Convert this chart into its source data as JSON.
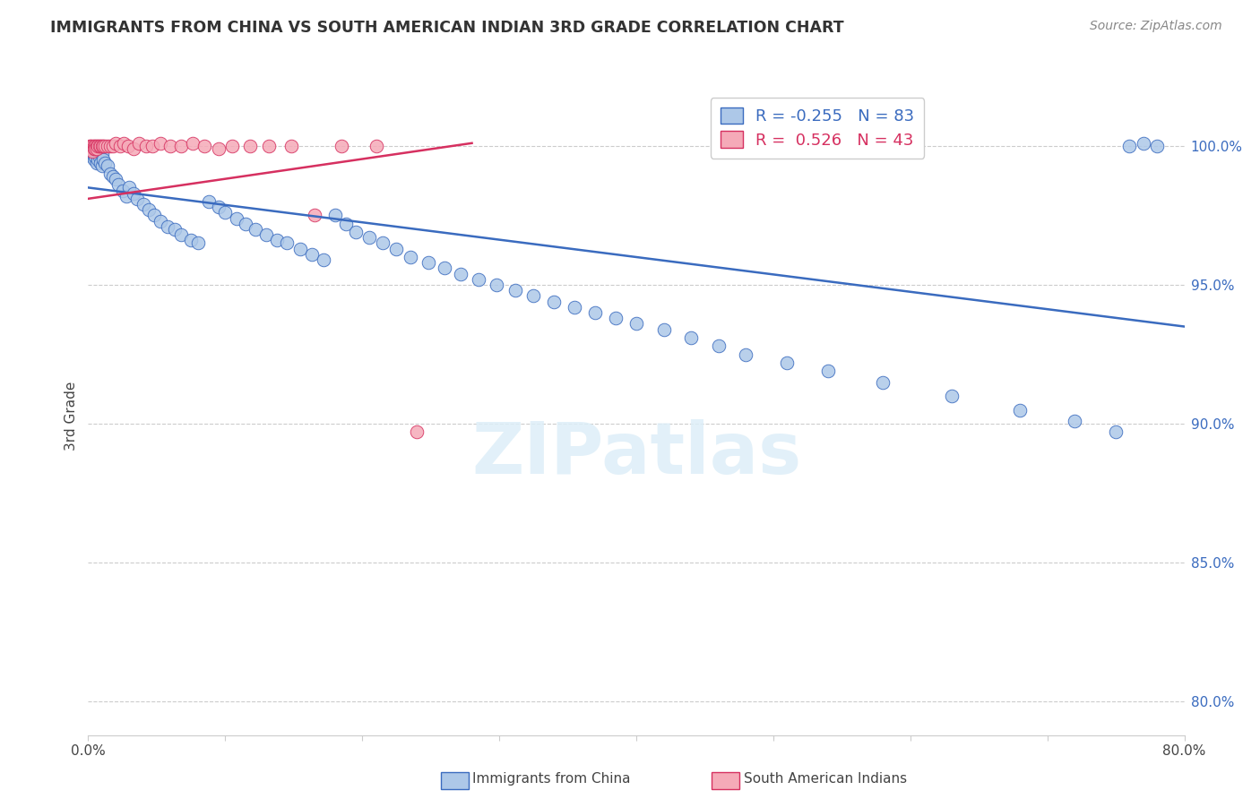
{
  "title": "IMMIGRANTS FROM CHINA VS SOUTH AMERICAN INDIAN 3RD GRADE CORRELATION CHART",
  "source": "Source: ZipAtlas.com",
  "ylabel": "3rd Grade",
  "yticks": [
    0.8,
    0.85,
    0.9,
    0.95,
    1.0
  ],
  "ytick_labels": [
    "80.0%",
    "85.0%",
    "90.0%",
    "95.0%",
    "100.0%"
  ],
  "xmin": 0.0,
  "xmax": 0.8,
  "ymin": 0.788,
  "ymax": 1.018,
  "blue_R": -0.255,
  "blue_N": 83,
  "pink_R": 0.526,
  "pink_N": 43,
  "blue_color": "#adc8e8",
  "blue_line_color": "#3a6bbf",
  "pink_color": "#f5aab8",
  "pink_line_color": "#d63060",
  "blue_line_x0": 0.0,
  "blue_line_y0": 0.985,
  "blue_line_x1": 0.8,
  "blue_line_y1": 0.935,
  "pink_line_x0": 0.0,
  "pink_line_y0": 0.981,
  "pink_line_x1": 0.28,
  "pink_line_y1": 1.001,
  "blue_scatter_x": [
    0.001,
    0.002,
    0.002,
    0.003,
    0.003,
    0.004,
    0.004,
    0.005,
    0.005,
    0.006,
    0.006,
    0.007,
    0.007,
    0.008,
    0.009,
    0.01,
    0.01,
    0.011,
    0.012,
    0.014,
    0.016,
    0.018,
    0.02,
    0.022,
    0.025,
    0.028,
    0.03,
    0.033,
    0.036,
    0.04,
    0.044,
    0.048,
    0.053,
    0.058,
    0.063,
    0.068,
    0.075,
    0.08,
    0.088,
    0.095,
    0.1,
    0.108,
    0.115,
    0.122,
    0.13,
    0.138,
    0.145,
    0.155,
    0.163,
    0.172,
    0.18,
    0.188,
    0.195,
    0.205,
    0.215,
    0.225,
    0.235,
    0.248,
    0.26,
    0.272,
    0.285,
    0.298,
    0.312,
    0.325,
    0.34,
    0.355,
    0.37,
    0.385,
    0.4,
    0.42,
    0.44,
    0.46,
    0.48,
    0.51,
    0.54,
    0.58,
    0.63,
    0.68,
    0.72,
    0.75,
    0.76,
    0.77,
    0.78
  ],
  "blue_scatter_y": [
    0.998,
    0.997,
    0.999,
    0.996,
    0.998,
    0.995,
    0.997,
    0.996,
    0.998,
    0.994,
    0.997,
    0.995,
    0.998,
    0.996,
    0.994,
    0.997,
    0.993,
    0.995,
    0.994,
    0.993,
    0.99,
    0.989,
    0.988,
    0.986,
    0.984,
    0.982,
    0.985,
    0.983,
    0.981,
    0.979,
    0.977,
    0.975,
    0.973,
    0.971,
    0.97,
    0.968,
    0.966,
    0.965,
    0.98,
    0.978,
    0.976,
    0.974,
    0.972,
    0.97,
    0.968,
    0.966,
    0.965,
    0.963,
    0.961,
    0.959,
    0.975,
    0.972,
    0.969,
    0.967,
    0.965,
    0.963,
    0.96,
    0.958,
    0.956,
    0.954,
    0.952,
    0.95,
    0.948,
    0.946,
    0.944,
    0.942,
    0.94,
    0.938,
    0.936,
    0.934,
    0.931,
    0.928,
    0.925,
    0.922,
    0.919,
    0.915,
    0.91,
    0.905,
    0.901,
    0.897,
    1.0,
    1.001,
    1.0
  ],
  "pink_scatter_x": [
    0.001,
    0.001,
    0.002,
    0.002,
    0.003,
    0.003,
    0.004,
    0.004,
    0.005,
    0.005,
    0.006,
    0.006,
    0.007,
    0.008,
    0.009,
    0.01,
    0.011,
    0.012,
    0.014,
    0.016,
    0.018,
    0.02,
    0.023,
    0.026,
    0.029,
    0.033,
    0.037,
    0.042,
    0.047,
    0.053,
    0.06,
    0.068,
    0.076,
    0.085,
    0.095,
    0.105,
    0.118,
    0.132,
    0.148,
    0.165,
    0.185,
    0.21,
    0.24
  ],
  "pink_scatter_y": [
    1.0,
    0.999,
    1.0,
    0.999,
    1.0,
    0.998,
    1.0,
    0.999,
    1.0,
    0.999,
    1.0,
    0.999,
    1.0,
    1.0,
    1.0,
    1.0,
    1.0,
    1.0,
    1.0,
    1.0,
    1.0,
    1.001,
    1.0,
    1.001,
    1.0,
    0.999,
    1.001,
    1.0,
    1.0,
    1.001,
    1.0,
    1.0,
    1.001,
    1.0,
    0.999,
    1.0,
    1.0,
    1.0,
    1.0,
    0.975,
    1.0,
    1.0,
    0.897
  ],
  "watermark": "ZIPatlas",
  "background_color": "#ffffff",
  "grid_color": "#cccccc"
}
